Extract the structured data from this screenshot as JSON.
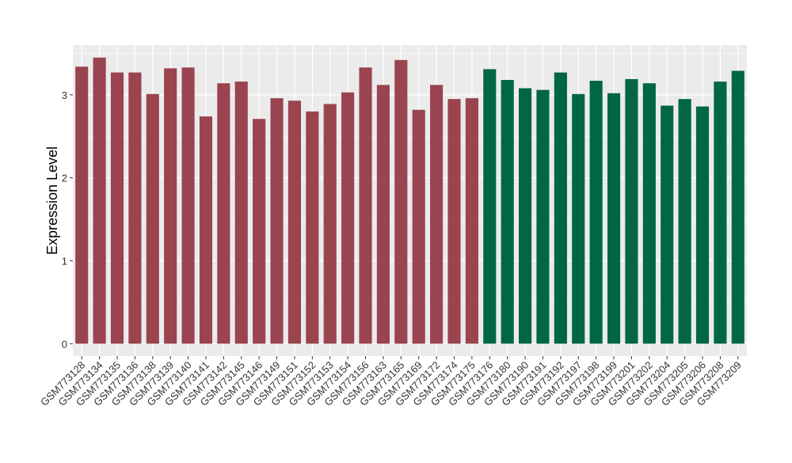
{
  "chart_data": {
    "type": "bar",
    "ylabel": "Expression Level",
    "xlabel": "",
    "title": "",
    "ylim": [
      -0.15,
      3.6
    ],
    "yticks": [
      0,
      1,
      2,
      3
    ],
    "grid": true,
    "colors": {
      "group1": "#9A4450",
      "group2": "#006644",
      "panel": "#EBEBEB",
      "grid": "#FFFFFF",
      "axis_text": "#333333"
    },
    "categories": [
      "GSM773128",
      "GSM773134",
      "GSM773135",
      "GSM773136",
      "GSM773138",
      "GSM773139",
      "GSM773140",
      "GSM773141",
      "GSM773142",
      "GSM773145",
      "GSM773146",
      "GSM773149",
      "GSM773151",
      "GSM773152",
      "GSM773153",
      "GSM773154",
      "GSM773156",
      "GSM773163",
      "GSM773165",
      "GSM773169",
      "GSM773172",
      "GSM773174",
      "GSM773175",
      "GSM773176",
      "GSM773180",
      "GSM773190",
      "GSM773191",
      "GSM773192",
      "GSM773197",
      "GSM773198",
      "GSM773199",
      "GSM773201",
      "GSM773202",
      "GSM773204",
      "GSM773205",
      "GSM773206",
      "GSM773208",
      "GSM773209"
    ],
    "values": [
      3.34,
      3.45,
      3.27,
      3.27,
      3.01,
      3.32,
      3.33,
      2.74,
      3.14,
      3.16,
      2.71,
      2.96,
      2.93,
      2.8,
      2.89,
      3.03,
      3.33,
      3.12,
      3.42,
      2.82,
      3.12,
      2.95,
      2.96,
      3.31,
      3.18,
      3.08,
      3.06,
      3.27,
      3.01,
      3.17,
      3.02,
      3.19,
      3.14,
      2.87,
      2.95,
      2.86,
      3.16,
      3.29
    ],
    "groups": [
      1,
      1,
      1,
      1,
      1,
      1,
      1,
      1,
      1,
      1,
      1,
      1,
      1,
      1,
      1,
      1,
      1,
      1,
      1,
      1,
      1,
      1,
      1,
      2,
      2,
      2,
      2,
      2,
      2,
      2,
      2,
      2,
      2,
      2,
      2,
      2,
      2,
      2
    ]
  }
}
